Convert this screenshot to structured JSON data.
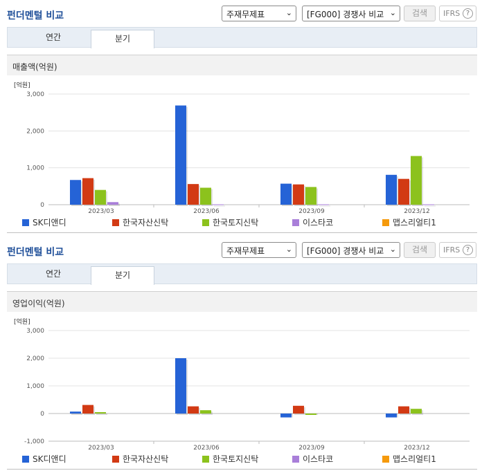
{
  "panel1": {
    "title": "펀더멘털 비교",
    "select1": "주재무제표",
    "select2": "[FG000] 경쟁사 비교",
    "search_label": "검색",
    "ifrs_label": "IFRS",
    "help_label": "?",
    "tabs": [
      {
        "label": "연간"
      },
      {
        "label": "분기"
      }
    ],
    "section_title": "매출액(억원)"
  },
  "panel2": {
    "title": "펀더멘털 비교",
    "select1": "주재무제표",
    "select2": "[FG000] 경쟁사 비교",
    "search_label": "검색",
    "ifrs_label": "IFRS",
    "help_label": "?",
    "tabs": [
      {
        "label": "연간"
      },
      {
        "label": "분기"
      }
    ],
    "section_title": "영업이익(억원)"
  },
  "chart_data": [
    {
      "type": "bar",
      "title": "매출액(억원)",
      "unit": "[억원]",
      "categories": [
        "2023/03",
        "2023/06",
        "2023/09",
        "2023/12"
      ],
      "ylim": [
        0,
        3000
      ],
      "yticks": [
        0,
        1000,
        2000,
        3000
      ],
      "ytick_labels": [
        "0",
        "1,000",
        "2,000",
        "3,000"
      ],
      "legend_position": "bottom",
      "series": [
        {
          "name": "SK디앤디",
          "color": "#2563d6",
          "values": [
            670,
            2690,
            570,
            810
          ]
        },
        {
          "name": "한국자산신탁",
          "color": "#d23a14",
          "values": [
            720,
            560,
            550,
            700
          ]
        },
        {
          "name": "한국토지신탁",
          "color": "#8cc21d",
          "values": [
            400,
            460,
            480,
            1320
          ]
        },
        {
          "name": "이스타코",
          "color": "#a97fd9",
          "values": [
            70,
            10,
            10,
            10
          ]
        },
        {
          "name": "맵스리얼티1",
          "color": "#f59a0c",
          "values": [
            0,
            0,
            0,
            0
          ]
        }
      ]
    },
    {
      "type": "bar",
      "title": "영업이익(억원)",
      "unit": "[억원]",
      "categories": [
        "2023/03",
        "2023/06",
        "2023/09",
        "2023/12"
      ],
      "ylim": [
        -1000,
        3000
      ],
      "yticks": [
        -1000,
        0,
        1000,
        2000,
        3000
      ],
      "ytick_labels": [
        "-1,000",
        "0",
        "1,000",
        "2,000",
        "3,000"
      ],
      "legend_position": "bottom",
      "series": [
        {
          "name": "SK디앤디",
          "color": "#2563d6",
          "values": [
            70,
            2000,
            -140,
            -140
          ]
        },
        {
          "name": "한국자산신탁",
          "color": "#d23a14",
          "values": [
            310,
            260,
            280,
            260
          ]
        },
        {
          "name": "한국토지신탁",
          "color": "#8cc21d",
          "values": [
            50,
            120,
            -50,
            170
          ]
        },
        {
          "name": "이스타코",
          "color": "#a97fd9",
          "values": [
            0,
            0,
            0,
            0
          ]
        },
        {
          "name": "맵스리얼티1",
          "color": "#f59a0c",
          "values": [
            0,
            0,
            0,
            0
          ]
        }
      ]
    }
  ]
}
